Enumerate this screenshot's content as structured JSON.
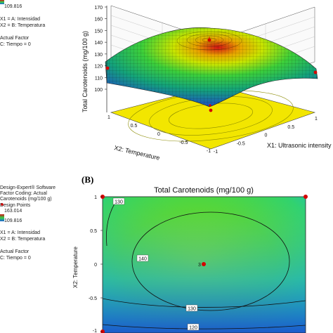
{
  "panel_b_label": "(B)",
  "side_legend_top": {
    "min_value": "109.816",
    "factor_x1": "X1 = A: Intensidad",
    "factor_x2": "X2 = B: Temperatura",
    "actual_factor_title": "Actual Factor",
    "actual_factor_value": "C: Tiempo = 0"
  },
  "side_legend_bottom": {
    "software": "Design-Expert® Software",
    "coding": "Factor Coding: Actual",
    "response": "Carotenoids (mg/100 g)",
    "design_points": "Design Points",
    "max_value": "163.014",
    "min_value": "109.816",
    "factor_x1": "X1 = A: Intensidad",
    "factor_x2": "X2 = B: Temperatura",
    "actual_factor_title": "Actual Factor",
    "actual_factor_value": "C: Tiempo = 0"
  },
  "colors": {
    "surface_high": "#d11313",
    "surface_mid_high": "#f2e600",
    "surface_mid": "#33d14a",
    "surface_low": "#1e63d6",
    "floor": "#f2e600",
    "design_point": "#d40000"
  },
  "chart_data": [
    {
      "type": "surface3d",
      "zlabel": "Total Carotenoids (mg/100 g)",
      "xlabel": "X1: Ultrasonic intensity",
      "ylabel": "X2: Temperature",
      "z_ticks": [
        "100",
        "110",
        "120",
        "130",
        "140",
        "150",
        "160",
        "170"
      ],
      "x_ticks": [
        "-1",
        "-0.5",
        "0",
        "0.5",
        "1"
      ],
      "y_ticks": [
        "1",
        "0.5",
        "0",
        "-0.5",
        "-1"
      ],
      "zlim": [
        100,
        170
      ],
      "center_value": 163,
      "design_points": [
        {
          "x1": 0,
          "x2": 0,
          "z": 163
        },
        {
          "x1": -1,
          "x2": 1,
          "z": 121
        },
        {
          "x1": 1,
          "x2": 1,
          "z": 113
        },
        {
          "x1": -1,
          "x2": -1,
          "z": 112
        }
      ]
    },
    {
      "type": "contour",
      "title": "Total Carotenoids (mg/100 g)",
      "ylabel": "X2: Temperature",
      "y_ticks": [
        "1",
        "0.5",
        "0",
        "-0.5",
        "-1"
      ],
      "ylim": [
        -1,
        1
      ],
      "contour_levels": [
        "120",
        "130",
        "140",
        "130"
      ],
      "center_point_count": "3",
      "design_points": [
        {
          "x1": -1,
          "x2": 1
        },
        {
          "x1": 1,
          "x2": 1
        },
        {
          "x1": 0,
          "x2": 0
        },
        {
          "x1": -1,
          "x2": -1
        }
      ]
    }
  ]
}
